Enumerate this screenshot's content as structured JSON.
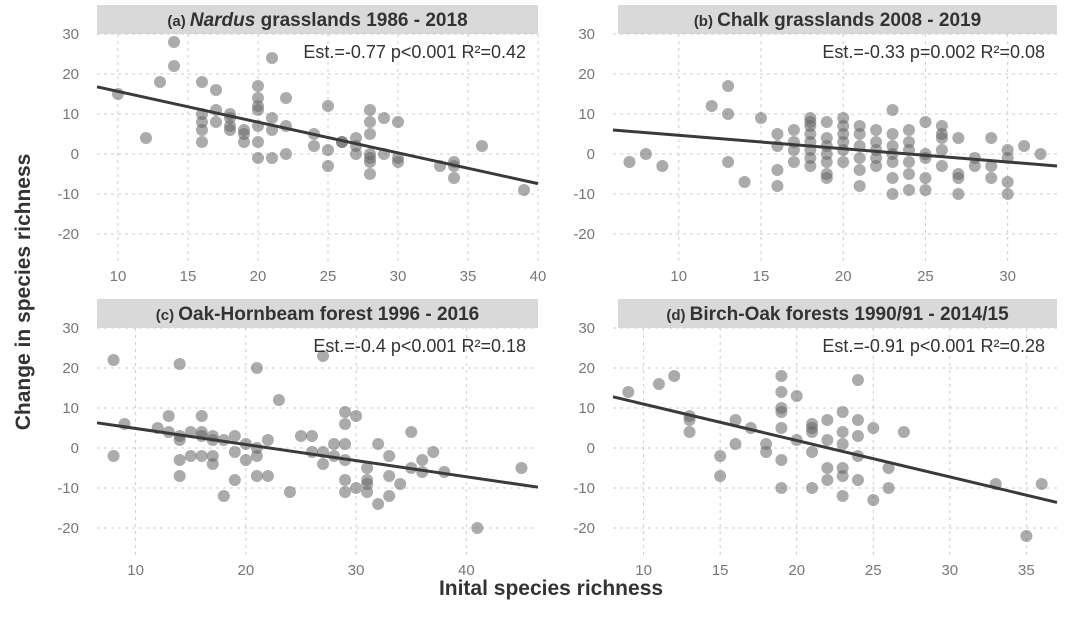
{
  "xlabel": "Inital species richness",
  "ylabel": "Change in species richness",
  "chart_data": [
    {
      "type": "scatter",
      "panel": "(a)",
      "title_tag": "(a)",
      "title_italic": "Nardus",
      "title_rest": " grasslands 1986 - 2018",
      "stats": "Est.=-0.77 p<0.001 R²=0.42",
      "xlim": [
        8.5,
        40
      ],
      "ylim": [
        -27,
        30
      ],
      "xticks": [
        10,
        15,
        20,
        25,
        30,
        35,
        40
      ],
      "yticks": [
        30,
        20,
        10,
        0,
        -10,
        -20
      ],
      "fit": {
        "slope": -0.77,
        "x0": 8.5,
        "y0": 16.8,
        "x1": 40,
        "y1": -7.4
      },
      "points": [
        [
          10,
          15
        ],
        [
          12,
          4
        ],
        [
          13,
          18
        ],
        [
          14,
          28
        ],
        [
          14,
          22
        ],
        [
          16,
          18
        ],
        [
          16,
          10
        ],
        [
          16,
          8
        ],
        [
          16,
          6
        ],
        [
          16,
          3
        ],
        [
          17,
          16
        ],
        [
          17,
          11
        ],
        [
          17,
          8
        ],
        [
          18,
          9
        ],
        [
          18,
          10
        ],
        [
          18,
          7
        ],
        [
          18,
          6
        ],
        [
          19,
          6
        ],
        [
          19,
          5
        ],
        [
          19,
          3
        ],
        [
          20,
          17
        ],
        [
          20,
          14
        ],
        [
          20,
          12
        ],
        [
          20,
          11
        ],
        [
          20,
          7
        ],
        [
          20,
          3
        ],
        [
          20,
          -1
        ],
        [
          21,
          24
        ],
        [
          21,
          9
        ],
        [
          21,
          6
        ],
        [
          21,
          -1
        ],
        [
          22,
          14
        ],
        [
          22,
          7
        ],
        [
          22,
          0
        ],
        [
          24,
          5
        ],
        [
          24,
          2
        ],
        [
          25,
          12
        ],
        [
          25,
          1
        ],
        [
          25,
          -3
        ],
        [
          26,
          3
        ],
        [
          26,
          3
        ],
        [
          27,
          4
        ],
        [
          27,
          2
        ],
        [
          27,
          0
        ],
        [
          28,
          11
        ],
        [
          28,
          8
        ],
        [
          28,
          5
        ],
        [
          28,
          0
        ],
        [
          28,
          -1
        ],
        [
          28,
          -2
        ],
        [
          28,
          -5
        ],
        [
          29,
          9
        ],
        [
          29,
          0
        ],
        [
          30,
          8
        ],
        [
          30,
          -1
        ],
        [
          30,
          -2
        ],
        [
          33,
          -3
        ],
        [
          34,
          -2
        ],
        [
          34,
          -3
        ],
        [
          34,
          -6
        ],
        [
          36,
          2
        ],
        [
          39,
          -9
        ]
      ]
    },
    {
      "type": "scatter",
      "panel": "(b)",
      "title_tag": "(b)",
      "title_italic": "",
      "title_rest": "Chalk grasslands 2008 - 2019",
      "stats": "Est.=-0.33 p=0.002 R²=0.08",
      "xlim": [
        6,
        33
      ],
      "ylim": [
        -27,
        30
      ],
      "xticks": [
        10,
        15,
        20,
        25,
        30
      ],
      "yticks": [
        30,
        20,
        10,
        0,
        -10,
        -20
      ],
      "fit": {
        "slope": -0.33,
        "x0": 6,
        "y0": 6.0,
        "x1": 33,
        "y1": -3.0
      },
      "points": [
        [
          7,
          -2
        ],
        [
          8,
          0
        ],
        [
          9,
          -3
        ],
        [
          12,
          12
        ],
        [
          13,
          17
        ],
        [
          13,
          10
        ],
        [
          13,
          -2
        ],
        [
          14,
          -7
        ],
        [
          15,
          9
        ],
        [
          16,
          5
        ],
        [
          16,
          2
        ],
        [
          16,
          -4
        ],
        [
          16,
          -8
        ],
        [
          17,
          6
        ],
        [
          17,
          3
        ],
        [
          17,
          1
        ],
        [
          17,
          -2
        ],
        [
          18,
          9
        ],
        [
          18,
          8
        ],
        [
          18,
          7
        ],
        [
          18,
          5
        ],
        [
          18,
          3
        ],
        [
          18,
          1
        ],
        [
          18,
          -1
        ],
        [
          18,
          -3
        ],
        [
          19,
          8
        ],
        [
          19,
          4
        ],
        [
          19,
          2
        ],
        [
          19,
          0
        ],
        [
          19,
          -2
        ],
        [
          19,
          -5
        ],
        [
          19,
          -6
        ],
        [
          20,
          9
        ],
        [
          20,
          7
        ],
        [
          20,
          5
        ],
        [
          20,
          3
        ],
        [
          20,
          1
        ],
        [
          20,
          -2
        ],
        [
          21,
          7
        ],
        [
          21,
          5
        ],
        [
          21,
          2
        ],
        [
          21,
          -1
        ],
        [
          21,
          -4
        ],
        [
          21,
          -8
        ],
        [
          22,
          6
        ],
        [
          22,
          3
        ],
        [
          22,
          1
        ],
        [
          22,
          -1
        ],
        [
          22,
          -3
        ],
        [
          23,
          11
        ],
        [
          23,
          5
        ],
        [
          23,
          2
        ],
        [
          23,
          0
        ],
        [
          23,
          -2
        ],
        [
          23,
          -6
        ],
        [
          23,
          -10
        ],
        [
          24,
          6
        ],
        [
          24,
          3
        ],
        [
          24,
          1
        ],
        [
          24,
          -2
        ],
        [
          24,
          -5
        ],
        [
          24,
          -9
        ],
        [
          25,
          8
        ],
        [
          25,
          0
        ],
        [
          25,
          -1
        ],
        [
          25,
          -6
        ],
        [
          25,
          -9
        ],
        [
          26,
          7
        ],
        [
          26,
          5
        ],
        [
          26,
          4
        ],
        [
          26,
          1
        ],
        [
          26,
          -3
        ],
        [
          27,
          4
        ],
        [
          27,
          -5
        ],
        [
          27,
          -6
        ],
        [
          27,
          -10
        ],
        [
          28,
          -1
        ],
        [
          28,
          -3
        ],
        [
          29,
          4
        ],
        [
          29,
          -3
        ],
        [
          29,
          -6
        ],
        [
          30,
          1
        ],
        [
          30,
          -1
        ],
        [
          30,
          -7
        ],
        [
          30,
          -10
        ],
        [
          31,
          2
        ],
        [
          32,
          0
        ]
      ]
    },
    {
      "type": "scatter",
      "panel": "(c)",
      "title_tag": "(c)",
      "title_italic": "",
      "title_rest": "Oak-Hornbeam forest 1996 - 2016",
      "stats": "Est.=-0.4 p<0.001 R²=0.18",
      "xlim": [
        6.5,
        46.5
      ],
      "ylim": [
        -27,
        30
      ],
      "xticks": [
        10,
        20,
        30,
        40
      ],
      "yticks": [
        30,
        20,
        10,
        0,
        -10,
        -20
      ],
      "fit": {
        "slope": -0.4,
        "x0": 6.5,
        "y0": 6.3,
        "x1": 46.5,
        "y1": -9.8
      },
      "points": [
        [
          8,
          22
        ],
        [
          8,
          -2
        ],
        [
          9,
          6
        ],
        [
          12,
          5
        ],
        [
          13,
          8
        ],
        [
          13,
          4
        ],
        [
          14,
          21
        ],
        [
          14,
          3
        ],
        [
          14,
          2
        ],
        [
          14,
          -3
        ],
        [
          14,
          -7
        ],
        [
          15,
          4
        ],
        [
          15,
          -2
        ],
        [
          16,
          8
        ],
        [
          16,
          4
        ],
        [
          16,
          3
        ],
        [
          16,
          -2
        ],
        [
          17,
          3
        ],
        [
          17,
          2
        ],
        [
          17,
          -2
        ],
        [
          17,
          -4
        ],
        [
          18,
          2
        ],
        [
          18,
          -12
        ],
        [
          19,
          3
        ],
        [
          19,
          -1
        ],
        [
          19,
          -8
        ],
        [
          20,
          1
        ],
        [
          20,
          -3
        ],
        [
          21,
          20
        ],
        [
          21,
          0
        ],
        [
          21,
          -2
        ],
        [
          21,
          -7
        ],
        [
          22,
          2
        ],
        [
          22,
          -7
        ],
        [
          23,
          12
        ],
        [
          24,
          -11
        ],
        [
          25,
          3
        ],
        [
          26,
          3
        ],
        [
          26,
          -1
        ],
        [
          27,
          23
        ],
        [
          27,
          -1
        ],
        [
          27,
          -4
        ],
        [
          28,
          1
        ],
        [
          28,
          -2
        ],
        [
          29,
          9
        ],
        [
          29,
          6
        ],
        [
          29,
          1
        ],
        [
          29,
          -3
        ],
        [
          29,
          -8
        ],
        [
          29,
          -11
        ],
        [
          30,
          8
        ],
        [
          30,
          -10
        ],
        [
          31,
          -5
        ],
        [
          31,
          -8
        ],
        [
          31,
          -9
        ],
        [
          31,
          -11
        ],
        [
          32,
          1
        ],
        [
          32,
          -14
        ],
        [
          33,
          -2
        ],
        [
          33,
          -7
        ],
        [
          33,
          -12
        ],
        [
          34,
          -9
        ],
        [
          35,
          4
        ],
        [
          35,
          -5
        ],
        [
          36,
          -3
        ],
        [
          36,
          -6
        ],
        [
          37,
          -1
        ],
        [
          38,
          -6
        ],
        [
          41,
          -20
        ],
        [
          45,
          -5
        ]
      ]
    },
    {
      "type": "scatter",
      "panel": "(d)",
      "title_tag": "(d)",
      "title_italic": "",
      "title_rest": "Birch-Oak forests 1990/91 - 2014/15",
      "stats": "Est.=-0.91 p<0.001 R²=0.28",
      "xlim": [
        8,
        37
      ],
      "ylim": [
        -27,
        30
      ],
      "xticks": [
        10,
        15,
        20,
        25,
        30,
        35
      ],
      "yticks": [
        30,
        20,
        10,
        0,
        -10,
        -20
      ],
      "fit": {
        "slope": -0.91,
        "x0": 8,
        "y0": 12.8,
        "x1": 37,
        "y1": -13.6
      },
      "points": [
        [
          9,
          14
        ],
        [
          11,
          16
        ],
        [
          12,
          18
        ],
        [
          13,
          8
        ],
        [
          13,
          7
        ],
        [
          13,
          4
        ],
        [
          15,
          -2
        ],
        [
          15,
          -7
        ],
        [
          16,
          7
        ],
        [
          16,
          1
        ],
        [
          17,
          5
        ],
        [
          18,
          1
        ],
        [
          18,
          -1
        ],
        [
          19,
          18
        ],
        [
          19,
          14
        ],
        [
          19,
          10
        ],
        [
          19,
          9
        ],
        [
          19,
          5
        ],
        [
          19,
          -3
        ],
        [
          19,
          -10
        ],
        [
          20,
          13
        ],
        [
          20,
          2
        ],
        [
          21,
          6
        ],
        [
          21,
          5
        ],
        [
          21,
          4
        ],
        [
          21,
          -1
        ],
        [
          21,
          -10
        ],
        [
          22,
          7
        ],
        [
          22,
          2
        ],
        [
          22,
          -5
        ],
        [
          22,
          -8
        ],
        [
          23,
          9
        ],
        [
          23,
          4
        ],
        [
          23,
          1
        ],
        [
          23,
          -5
        ],
        [
          23,
          -7
        ],
        [
          23,
          -12
        ],
        [
          24,
          17
        ],
        [
          24,
          7
        ],
        [
          24,
          3
        ],
        [
          24,
          -2
        ],
        [
          24,
          -8
        ],
        [
          25,
          5
        ],
        [
          25,
          -13
        ],
        [
          26,
          -5
        ],
        [
          26,
          -10
        ],
        [
          27,
          4
        ],
        [
          33,
          -9
        ],
        [
          35,
          -22
        ],
        [
          36,
          -9
        ]
      ]
    }
  ]
}
